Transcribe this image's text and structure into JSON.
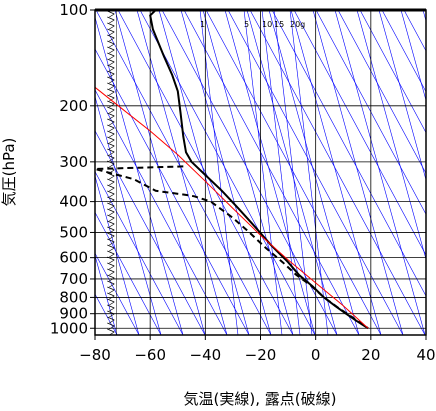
{
  "chart_data": {
    "type": "line",
    "title": "",
    "xlabel": "気温(実線), 露点(破線)",
    "ylabel": "気圧(hPa)",
    "x_axis": {
      "range": [
        -80,
        40
      ],
      "ticks": [
        -80,
        -60,
        -40,
        -20,
        0,
        20,
        40
      ],
      "labels": [
        "−80",
        "−60",
        "−40",
        "−20",
        "0",
        "20",
        "40"
      ]
    },
    "y_axis": {
      "scale": "log",
      "range": [
        100,
        1050
      ],
      "ticks": [
        100,
        200,
        300,
        400,
        500,
        600,
        700,
        800,
        900,
        1000
      ],
      "labels": [
        "100",
        "200",
        "300",
        "400",
        "500",
        "600",
        "700",
        "800",
        "900",
        "1000"
      ]
    },
    "mixing_ratio_labels": [
      {
        "label": "1",
        "value": 1
      },
      {
        "label": "5",
        "value": 5
      },
      {
        "label": "10",
        "value": 10
      },
      {
        "label": "15",
        "value": 15
      },
      {
        "label": "20g",
        "value": 20
      }
    ],
    "series": [
      {
        "name": "気温",
        "style": "solid",
        "color": "#000000",
        "points": [
          [
            -58,
            100
          ],
          [
            -60,
            104
          ],
          [
            -59,
            115
          ],
          [
            -55,
            140
          ],
          [
            -52,
            160
          ],
          [
            -50,
            180
          ],
          [
            -49,
            210
          ],
          [
            -48,
            250
          ],
          [
            -47,
            280
          ],
          [
            -45,
            300
          ],
          [
            -40,
            330
          ],
          [
            -34,
            370
          ],
          [
            -28,
            420
          ],
          [
            -22,
            480
          ],
          [
            -16,
            550
          ],
          [
            -10,
            620
          ],
          [
            -6,
            680
          ],
          [
            -1,
            740
          ],
          [
            3,
            800
          ],
          [
            7,
            850
          ],
          [
            11,
            900
          ],
          [
            15,
            950
          ],
          [
            19,
            1000
          ]
        ]
      },
      {
        "name": "露点",
        "style": "dashed",
        "color": "#000000",
        "points": [
          [
            -48,
            310
          ],
          [
            -64,
            313
          ],
          [
            -80,
            316
          ],
          [
            -66,
            340
          ],
          [
            -58,
            370
          ],
          [
            -48,
            380
          ],
          [
            -44,
            385
          ],
          [
            -38,
            400
          ],
          [
            -30,
            450
          ],
          [
            -24,
            500
          ],
          [
            -18,
            560
          ],
          [
            -12,
            620
          ],
          [
            -7,
            680
          ],
          [
            -2,
            730
          ],
          [
            3,
            800
          ],
          [
            8,
            860
          ],
          [
            13,
            920
          ],
          [
            19,
            1000
          ]
        ]
      },
      {
        "name": "",
        "style": "solid",
        "color": "#ff0000",
        "points": [
          [
            -80,
            175
          ],
          [
            -70,
            205
          ],
          [
            -60,
            240
          ],
          [
            -50,
            285
          ],
          [
            -40,
            345
          ],
          [
            -30,
            420
          ],
          [
            -20,
            510
          ],
          [
            -10,
            610
          ],
          [
            0,
            720
          ],
          [
            10,
            850
          ],
          [
            19,
            1000
          ]
        ]
      }
    ],
    "wind_barbs_x": -73,
    "grid": true,
    "colors": {
      "temperature": "#000000",
      "dewpoint": "#000000",
      "parcel": "#ff0000",
      "background_lines": "#0000ff",
      "grid": "#000000"
    }
  }
}
